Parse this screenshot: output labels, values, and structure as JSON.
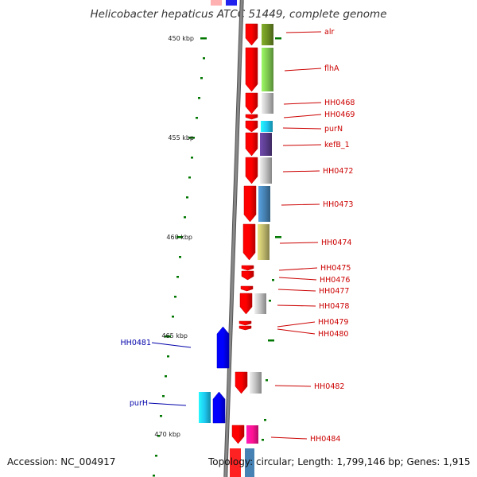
{
  "title": "Helicobacter hepaticus ATCC 51449, complete genome",
  "footer": {
    "accession": "Accession: NC_004917",
    "topology": "Topology: circular; Length: 1,799,146 bp; Genes: 1,915"
  },
  "tick_labels": [
    "450 kbp",
    "455 kbp",
    "460 kbp",
    "465 kbp",
    "470 kbp"
  ],
  "genes": [
    {
      "name": "alr",
      "strand": "forward",
      "color": "#ff0000",
      "cog_color": "#6b8e23"
    },
    {
      "name": "flhA",
      "strand": "forward",
      "color": "#ff0000",
      "cog_color": "#7ec850"
    },
    {
      "name": "HH0468",
      "strand": "forward",
      "color": "#ff0000",
      "cog_color": "#c0c0c0"
    },
    {
      "name": "HH0469",
      "strand": "forward",
      "color": "#ff0000",
      "cog_color": ""
    },
    {
      "name": "purN",
      "strand": "forward",
      "color": "#ff0000",
      "cog_color": "#1ec8f0"
    },
    {
      "name": "kefB_1",
      "strand": "forward",
      "color": "#ff0000",
      "cog_color": "#5a3c8c"
    },
    {
      "name": "HH0472",
      "strand": "forward",
      "color": "#ff0000",
      "cog_color": "#c0c0c0"
    },
    {
      "name": "HH0473",
      "strand": "forward",
      "color": "#ff0000",
      "cog_color": "#4682b4"
    },
    {
      "name": "HH0474",
      "strand": "forward",
      "color": "#ff0000",
      "cog_color": "#bdb76b"
    },
    {
      "name": "HH0475",
      "strand": "forward",
      "color": "#ff0000",
      "cog_color": ""
    },
    {
      "name": "HH0476",
      "strand": "forward",
      "color": "#ff0000",
      "cog_color": ""
    },
    {
      "name": "HH0477",
      "strand": "forward",
      "color": "#ff0000",
      "cog_color": ""
    },
    {
      "name": "HH0478",
      "strand": "forward",
      "color": "#ff0000",
      "cog_color": "#c0c0c0"
    },
    {
      "name": "HH0479",
      "strand": "forward",
      "color": "#ff0000",
      "cog_color": ""
    },
    {
      "name": "HH0480",
      "strand": "forward",
      "color": "#ff0000",
      "cog_color": ""
    },
    {
      "name": "HH0481",
      "strand": "reverse",
      "color": "#0000ff",
      "cog_color": ""
    },
    {
      "name": "HH0482",
      "strand": "forward",
      "color": "#ff0000",
      "cog_color": "#c0c0c0"
    },
    {
      "name": "purH",
      "strand": "reverse",
      "color": "#0000ff",
      "cog_color": "#1ec8f0"
    },
    {
      "name": "HH0484",
      "strand": "forward",
      "color": "#ff0000",
      "cog_color": "#ff1493"
    }
  ],
  "colors": {
    "forward_label": "#cc0000",
    "reverse_label": "#0000aa",
    "ticks": "#007700",
    "backbone": "#888888"
  }
}
